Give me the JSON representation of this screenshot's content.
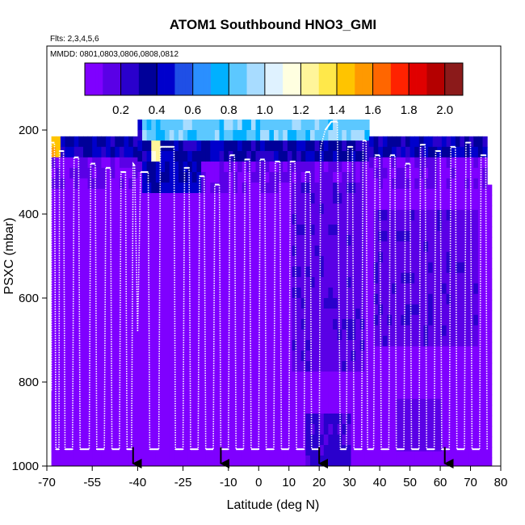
{
  "chart_data": {
    "type": "heatmap",
    "title": "ATOM1 Southbound HNO3_GMI",
    "subtitle_flights": "Flts: 2,3,4,5,6",
    "subtitle_dates": "MMDD: 0801,0803,0806,0808,0812",
    "xlabel": "Latitude (deg N)",
    "ylabel": "PSXC (mbar)",
    "xlim": [
      -70,
      80
    ],
    "ylim": [
      1000,
      0
    ],
    "x_ticks": [
      -70,
      -55,
      -40,
      -25,
      -10,
      0,
      10,
      20,
      30,
      40,
      50,
      60,
      70,
      80
    ],
    "x_tick_labels": [
      "-70",
      "-55",
      "-40",
      "-25",
      "-10",
      "0",
      "10",
      "20",
      "30",
      "40",
      "50",
      "60",
      "70",
      "80"
    ],
    "y_ticks": [
      200,
      400,
      600,
      800,
      1000
    ],
    "y_tick_labels": [
      "200",
      "400",
      "600",
      "800",
      "1000"
    ],
    "colorbar": {
      "range": [
        0,
        2.1
      ],
      "ticks": [
        0.2,
        0.4,
        0.6,
        0.8,
        1.0,
        1.2,
        1.4,
        1.6,
        1.8,
        2.0
      ],
      "tick_labels": [
        "0.2",
        "0.4",
        "0.6",
        "0.8",
        "1.0",
        "1.2",
        "1.4",
        "1.6",
        "1.8",
        "2.0"
      ],
      "colors": [
        "#7f00ff",
        "#5a00e6",
        "#2a00cc",
        "#000099",
        "#0000cc",
        "#1f4fe6",
        "#2a8fff",
        "#00b0ff",
        "#5cc8ff",
        "#a8dcff",
        "#dff2ff",
        "#ffffe0",
        "#fff59a",
        "#ffe84a",
        "#ffc400",
        "#ff9900",
        "#ff6600",
        "#ff2200",
        "#e00000",
        "#b40000",
        "#8b1a1a"
      ]
    },
    "flight_path": [
      [
        -68.5,
        820
      ],
      [
        -68.5,
        230
      ],
      [
        -67.5,
        230
      ],
      [
        -67,
        960
      ],
      [
        -66,
        960
      ],
      [
        -65.8,
        250
      ],
      [
        -64.5,
        250
      ],
      [
        -64,
        960
      ],
      [
        -61.5,
        960
      ],
      [
        -61,
        265
      ],
      [
        -59.5,
        265
      ],
      [
        -59,
        960
      ],
      [
        -56,
        960
      ],
      [
        -55.5,
        280
      ],
      [
        -54,
        280
      ],
      [
        -53.5,
        960
      ],
      [
        -51,
        960
      ],
      [
        -50.5,
        290
      ],
      [
        -49,
        290
      ],
      [
        -48.5,
        960
      ],
      [
        -46,
        960
      ],
      [
        -45.5,
        300
      ],
      [
        -44,
        300
      ],
      [
        -43.5,
        960
      ],
      [
        -42,
        960
      ],
      [
        -41.5,
        280
      ],
      [
        -41,
        285
      ],
      [
        -40,
        680
      ],
      [
        -39,
        300
      ],
      [
        -36.5,
        300
      ],
      [
        -36,
        960
      ],
      [
        -33,
        960
      ],
      [
        -32.5,
        240
      ],
      [
        -28,
        240
      ],
      [
        -27.5,
        960
      ],
      [
        -25,
        960
      ],
      [
        -24.5,
        290
      ],
      [
        -23,
        290
      ],
      [
        -22.5,
        960
      ],
      [
        -20,
        960
      ],
      [
        -19.5,
        310
      ],
      [
        -18,
        310
      ],
      [
        -17.5,
        960
      ],
      [
        -15,
        960
      ],
      [
        -14.5,
        330
      ],
      [
        -13,
        330
      ],
      [
        -12.5,
        960
      ],
      [
        -10,
        960
      ],
      [
        -9.5,
        260
      ],
      [
        -8,
        260
      ],
      [
        -7.5,
        960
      ],
      [
        -5,
        960
      ],
      [
        -4.5,
        270
      ],
      [
        -3,
        270
      ],
      [
        -2.5,
        960
      ],
      [
        0,
        960
      ],
      [
        0.5,
        270
      ],
      [
        2,
        270
      ],
      [
        2.5,
        960
      ],
      [
        5,
        960
      ],
      [
        5.5,
        275
      ],
      [
        7,
        275
      ],
      [
        7.5,
        960
      ],
      [
        10,
        960
      ],
      [
        10.5,
        275
      ],
      [
        12,
        275
      ],
      [
        12.5,
        960
      ],
      [
        15,
        960
      ],
      [
        15.5,
        300
      ],
      [
        17,
        300
      ],
      [
        17.5,
        960
      ],
      [
        20,
        960
      ],
      [
        20.5,
        240
      ],
      [
        22,
        200
      ],
      [
        24,
        180
      ],
      [
        26,
        180
      ],
      [
        27,
        960
      ],
      [
        29,
        960
      ],
      [
        29.5,
        240
      ],
      [
        31,
        240
      ],
      [
        31.5,
        960
      ],
      [
        34,
        960
      ],
      [
        34.5,
        225
      ],
      [
        35.5,
        225
      ],
      [
        36,
        960
      ],
      [
        38,
        960
      ],
      [
        38.5,
        260
      ],
      [
        40,
        260
      ],
      [
        40.5,
        960
      ],
      [
        43,
        960
      ],
      [
        43.5,
        260
      ],
      [
        45,
        260
      ],
      [
        45.5,
        960
      ],
      [
        48,
        960
      ],
      [
        48.5,
        280
      ],
      [
        50,
        280
      ],
      [
        50.5,
        960
      ],
      [
        53,
        960
      ],
      [
        53.5,
        235
      ],
      [
        55,
        235
      ],
      [
        55.5,
        960
      ],
      [
        58,
        960
      ],
      [
        58.5,
        250
      ],
      [
        60,
        250
      ],
      [
        60.5,
        960
      ],
      [
        63,
        960
      ],
      [
        63.5,
        240
      ],
      [
        65,
        240
      ],
      [
        65.5,
        960
      ],
      [
        68,
        960
      ],
      [
        68.5,
        230
      ],
      [
        70,
        230
      ],
      [
        70.5,
        960
      ],
      [
        73,
        960
      ],
      [
        73.5,
        260
      ],
      [
        75,
        260
      ],
      [
        75.5,
        960
      ]
    ],
    "profile_markers_lat": [
      -41.5,
      -12.5,
      20,
      61.5
    ]
  }
}
